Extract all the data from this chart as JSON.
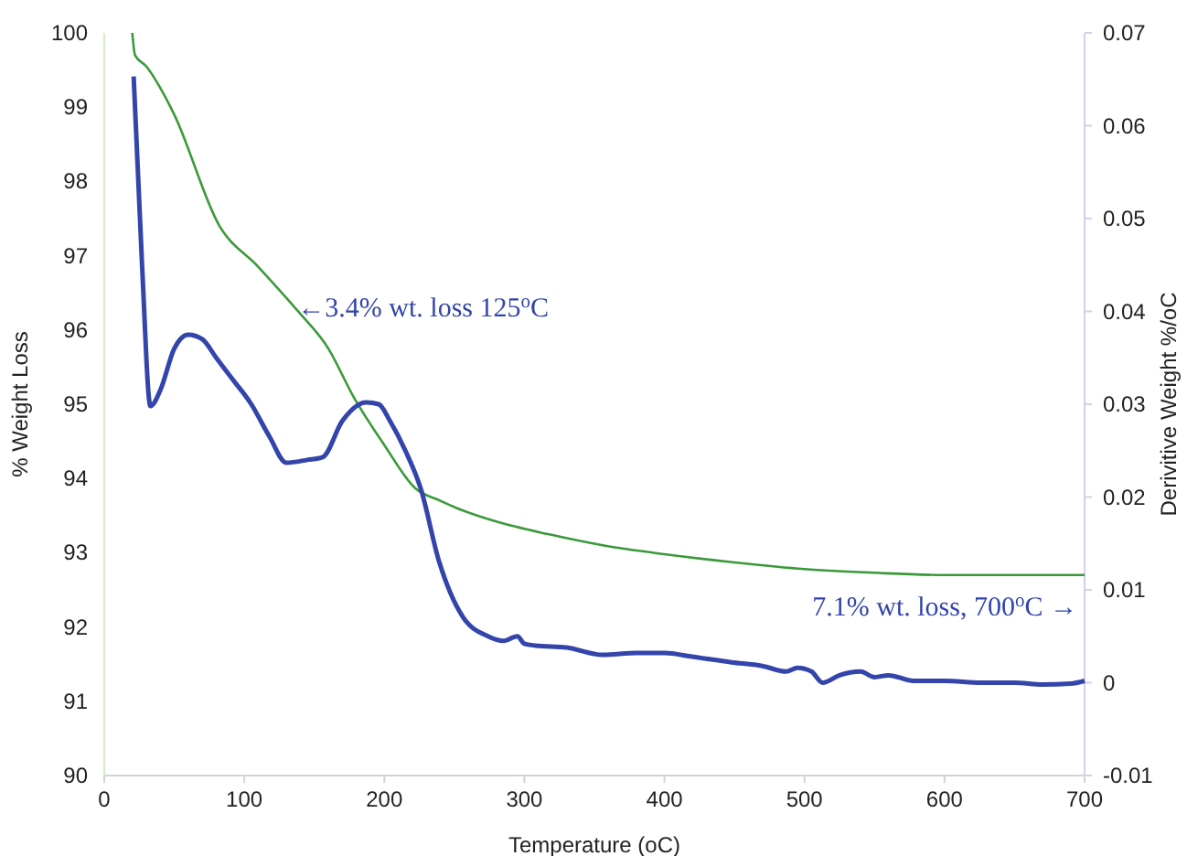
{
  "chart_data": {
    "type": "line",
    "xlabel": "Temperature (oC)",
    "ylabel": "% Weight Loss",
    "y2label": "Derivitive Weight %/oC",
    "xlim": [
      0,
      700
    ],
    "xticks": [
      0,
      100,
      200,
      300,
      400,
      500,
      600,
      700
    ],
    "ylim": [
      90,
      100
    ],
    "yticks": [
      90,
      91,
      92,
      93,
      94,
      95,
      96,
      97,
      98,
      99,
      100
    ],
    "y2lim": [
      -0.01,
      0.07
    ],
    "y2ticks": [
      -0.01,
      0,
      0.01,
      0.02,
      0.03,
      0.04,
      0.05,
      0.06,
      0.07
    ],
    "grid": false,
    "marker": "none",
    "line_style": "solid",
    "series": [
      {
        "color": "#3a9a3a",
        "x": [
          20,
          22,
          30,
          40,
          50,
          82,
          110,
          138,
          160,
          178,
          200,
          222,
          240,
          252,
          280,
          317,
          356,
          400,
          450,
          500,
          550,
          600,
          650,
          700
        ],
        "values": [
          100,
          99.7,
          99.55,
          99.26,
          98.9,
          97.41,
          96.85,
          96.26,
          95.75,
          95.1,
          94.45,
          93.87,
          93.7,
          93.6,
          93.42,
          93.25,
          93.1,
          92.98,
          92.87,
          92.78,
          92.73,
          92.7,
          92.7,
          92.7
        ]
      },
      {
        "color": "#3344aa",
        "axis": "y2",
        "x": [
          21,
          27,
          33,
          40,
          50,
          60,
          70,
          80,
          91,
          105,
          118,
          130,
          145,
          156,
          170,
          187,
          196,
          204,
          215,
          226,
          239,
          256,
          274,
          285,
          295,
          300,
          308,
          330,
          356,
          380,
          400,
          420,
          448,
          470,
          487,
          495,
          505,
          513,
          525,
          540,
          550,
          560,
          578,
          600,
          626,
          650,
          670,
          690,
          700
        ],
        "values": [
          0.0653,
          0.045,
          0.0298,
          0.0315,
          0.036,
          0.0375,
          0.037,
          0.035,
          0.0328,
          0.03,
          0.0265,
          0.0237,
          0.024,
          0.0243,
          0.0282,
          0.0302,
          0.03,
          0.0282,
          0.025,
          0.0209,
          0.0131,
          0.0071,
          0.005,
          0.0045,
          0.005,
          0.0042,
          0.004,
          0.0038,
          0.003,
          0.0032,
          0.0032,
          0.0028,
          0.0022,
          0.0018,
          0.0012,
          0.0016,
          0.0012,
          0.0,
          0.0008,
          0.0012,
          0.0006,
          0.0008,
          0.0002,
          0.0002,
          0.0,
          0.0,
          -0.0002,
          -0.0001,
          0.0002
        ]
      }
    ],
    "annotations": [
      {
        "text": "←3.4% wt. loss 125$^{o}$C",
        "x": 138,
        "y": 96.3
      },
      "7.1% wt. loss, 700$^{o}$C →"
    ]
  }
}
